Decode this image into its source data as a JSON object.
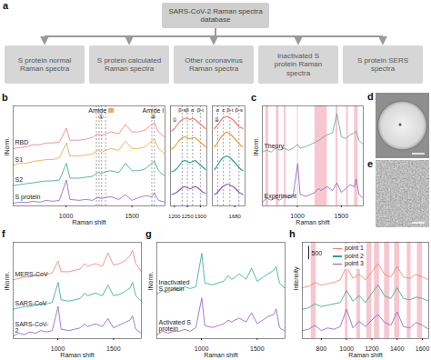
{
  "diagram": {
    "label": "a",
    "root": "SARS-CoV-2 Raman spectra database",
    "children": [
      "S protein normal Raman spectra",
      "S protein calculated Raman spectra",
      "Other coronavirus Raman spectra",
      "Inactivated S protein Raman spectra",
      "S protein SERS spectra"
    ]
  },
  "images": [
    {
      "label": "d"
    },
    {
      "label": "e"
    }
  ],
  "chart_data": [
    {
      "type": "line",
      "title": "b",
      "xlabel": "Raman shift",
      "ylabel": "INorm.",
      "x": [
        600,
        650,
        700,
        750,
        800,
        850,
        900,
        950,
        1003,
        1030,
        1100,
        1150,
        1200,
        1240,
        1270,
        1300,
        1340,
        1400,
        1450,
        1500,
        1550,
        1600,
        1650,
        1670,
        1700,
        1750
      ],
      "series": [
        {
          "name": "RBD",
          "color": "#ef7b72",
          "values": [
            3.1,
            3.15,
            3.2,
            3.3,
            3.3,
            3.4,
            3.4,
            3.45,
            4.2,
            3.55,
            3.55,
            3.6,
            3.7,
            3.9,
            3.8,
            3.9,
            4.0,
            3.9,
            4.4,
            4.0,
            4.0,
            4.1,
            4.4,
            4.5,
            4.0,
            3.7
          ]
        },
        {
          "name": "S1",
          "color": "#e9a23b",
          "values": [
            2.2,
            2.3,
            2.3,
            2.4,
            2.45,
            2.5,
            2.5,
            2.6,
            3.4,
            2.7,
            2.7,
            2.75,
            2.8,
            3.0,
            2.9,
            3.0,
            3.1,
            3.0,
            3.5,
            3.1,
            3.1,
            3.2,
            3.5,
            3.6,
            3.1,
            2.8
          ]
        },
        {
          "name": "S2",
          "color": "#2ca58d",
          "values": [
            1.1,
            1.15,
            1.2,
            1.25,
            1.3,
            1.35,
            1.35,
            1.4,
            2.3,
            1.5,
            1.5,
            1.55,
            1.6,
            1.8,
            1.75,
            1.85,
            1.9,
            1.8,
            2.3,
            1.9,
            1.9,
            2.0,
            2.3,
            2.4,
            1.9,
            1.6
          ]
        },
        {
          "name": "S protein",
          "color": "#8b5cc4",
          "values": [
            0.15,
            0.2,
            0.18,
            0.25,
            0.2,
            0.3,
            0.25,
            0.3,
            1.4,
            0.35,
            0.3,
            0.35,
            0.3,
            0.45,
            0.4,
            0.45,
            0.5,
            0.35,
            0.6,
            0.3,
            0.45,
            0.55,
            0.5,
            0.7,
            0.3,
            0.2
          ]
        }
      ],
      "xlim": [
        600,
        1750
      ],
      "xticks": [
        1000,
        1500
      ],
      "ylim": [
        0,
        5.4
      ],
      "dashed_lines": [
        1230,
        1250,
        1270,
        1300,
        1650,
        1670
      ],
      "annotations": [
        {
          "text": "Amide III",
          "x": 1265,
          "y": 5.15
        },
        {
          "text": "①",
          "x": 1265,
          "y": 4.8
        },
        {
          "text": "Amide I",
          "x": 1660,
          "y": 5.15
        },
        {
          "text": "②",
          "x": 1660,
          "y": 4.8
        }
      ]
    },
    {
      "type": "line",
      "title": "①",
      "x": [
        1190,
        1200,
        1210,
        1220,
        1230,
        1240,
        1250,
        1260,
        1270,
        1280,
        1290,
        1300,
        1310,
        1320
      ],
      "series": [
        {
          "name": "RBD",
          "color": "#ef7b72",
          "values": [
            3.3,
            3.4,
            3.55,
            3.7,
            3.8,
            3.85,
            3.85,
            3.8,
            3.85,
            3.8,
            3.7,
            3.6,
            3.5,
            3.4
          ]
        },
        {
          "name": "S1",
          "color": "#e9a23b",
          "values": [
            2.5,
            2.6,
            2.75,
            2.9,
            3.0,
            3.05,
            3.0,
            2.95,
            3.0,
            3.0,
            2.9,
            2.8,
            2.7,
            2.6
          ]
        },
        {
          "name": "S2",
          "color": "#2ca58d",
          "values": [
            1.5,
            1.55,
            1.65,
            1.8,
            1.95,
            2.0,
            1.95,
            1.9,
            1.95,
            2.0,
            1.9,
            1.8,
            1.7,
            1.6
          ]
        },
        {
          "name": "S protein",
          "color": "#8b5cc4",
          "values": [
            0.5,
            0.55,
            0.6,
            0.7,
            0.8,
            0.85,
            0.8,
            0.75,
            0.8,
            0.85,
            0.8,
            0.7,
            0.6,
            0.55
          ]
        }
      ],
      "xlim": [
        1185,
        1325
      ],
      "xticks": [
        1200,
        1250,
        1300
      ],
      "ylim": [
        0,
        4.4
      ],
      "dashed_lines": [
        1230,
        1250,
        1270,
        1300
      ],
      "annotations": [
        {
          "text": "β-s",
          "x": 1230,
          "y": 4.2
        },
        {
          "text": "β",
          "x": 1250,
          "y": 4.2
        },
        {
          "text": "α",
          "x": 1270,
          "y": 4.2
        },
        {
          "text": "β-t",
          "x": 1300,
          "y": 4.2
        }
      ]
    },
    {
      "type": "line",
      "title": "②",
      "x": [
        1630,
        1635,
        1640,
        1645,
        1650,
        1655,
        1660,
        1665,
        1670,
        1675,
        1680,
        1685,
        1690,
        1695,
        1700
      ],
      "series": [
        {
          "name": "RBD",
          "color": "#ef7b72",
          "values": [
            3.4,
            3.5,
            3.6,
            3.75,
            3.85,
            3.9,
            3.95,
            3.9,
            3.85,
            3.8,
            3.7,
            3.6,
            3.5,
            3.45,
            3.4
          ]
        },
        {
          "name": "S1",
          "color": "#e9a23b",
          "values": [
            2.6,
            2.7,
            2.85,
            3.0,
            3.1,
            3.2,
            3.25,
            3.2,
            3.15,
            3.05,
            2.95,
            2.85,
            2.75,
            2.65,
            2.6
          ]
        },
        {
          "name": "S2",
          "color": "#2ca58d",
          "values": [
            1.6,
            1.7,
            1.85,
            2.0,
            2.1,
            2.15,
            2.2,
            2.15,
            2.1,
            2.0,
            1.9,
            1.8,
            1.7,
            1.6,
            1.55
          ]
        },
        {
          "name": "S protein",
          "color": "#8b5cc4",
          "values": [
            0.5,
            0.55,
            0.65,
            0.75,
            0.85,
            0.9,
            0.95,
            0.95,
            0.9,
            0.85,
            0.8,
            0.7,
            0.6,
            0.55,
            0.5
          ]
        }
      ],
      "xlim": [
        1625,
        1705
      ],
      "xticks": [
        1680
      ],
      "ylim": [
        0,
        4.4
      ],
      "dashed_lines": [
        1638,
        1652,
        1668,
        1690
      ],
      "annotations": [
        {
          "text": "α",
          "x": 1638,
          "y": 4.2
        },
        {
          "text": "c",
          "x": 1652,
          "y": 4.2
        },
        {
          "text": "β-t",
          "x": 1668,
          "y": 4.2
        },
        {
          "text": "β-s",
          "x": 1690,
          "y": 4.2
        }
      ]
    },
    {
      "type": "line",
      "title": "c",
      "xlabel": "Raman shift",
      "ylabel": "INorm.",
      "x": [
        600,
        650,
        700,
        750,
        800,
        850,
        900,
        950,
        1003,
        1030,
        1100,
        1150,
        1200,
        1240,
        1270,
        1300,
        1340,
        1400,
        1450,
        1500,
        1550,
        1600,
        1650,
        1670,
        1700,
        1750
      ],
      "series": [
        {
          "name": "Theory",
          "color": "#5aa58a",
          "values": [
            1.4,
            1.45,
            1.4,
            1.5,
            1.45,
            1.5,
            1.45,
            1.5,
            1.6,
            1.5,
            1.55,
            1.6,
            1.65,
            1.7,
            1.75,
            1.8,
            1.85,
            1.9,
            2.4,
            1.8,
            1.75,
            1.85,
            1.9,
            1.95,
            1.7,
            1.6
          ]
        },
        {
          "name": "Experiment",
          "color": "#8b5cc4",
          "values": [
            0.1,
            0.2,
            0.15,
            0.2,
            0.15,
            0.25,
            0.2,
            0.25,
            1.1,
            0.3,
            0.25,
            0.3,
            0.35,
            0.45,
            0.4,
            0.45,
            0.5,
            0.4,
            0.6,
            0.35,
            0.45,
            0.55,
            0.5,
            0.7,
            0.3,
            0.2
          ]
        }
      ],
      "xlim": [
        600,
        1750
      ],
      "xticks": [
        1000,
        1500
      ],
      "ylim": [
        0,
        2.6
      ],
      "bands": [
        [
          640,
          670
        ],
        [
          760,
          790
        ],
        [
          850,
          870
        ],
        [
          1000,
          1010
        ],
        [
          1200,
          1340
        ],
        [
          1440,
          1460
        ],
        [
          1560,
          1580
        ],
        [
          1650,
          1690
        ]
      ]
    },
    {
      "type": "line",
      "title": "f",
      "xlabel": "Raman shift",
      "ylabel": "INorm.",
      "x": [
        600,
        650,
        700,
        750,
        800,
        850,
        900,
        950,
        1003,
        1030,
        1100,
        1150,
        1200,
        1240,
        1270,
        1300,
        1340,
        1400,
        1450,
        1500,
        1550,
        1600,
        1650,
        1670,
        1700,
        1750
      ],
      "series": [
        {
          "name": "MERS-CoV",
          "color": "#ef7b72",
          "values": [
            2.2,
            2.25,
            2.3,
            2.3,
            2.35,
            2.4,
            2.4,
            2.45,
            2.9,
            2.5,
            2.5,
            2.55,
            2.6,
            2.8,
            2.7,
            2.75,
            2.8,
            2.7,
            3.2,
            2.75,
            2.8,
            2.9,
            3.1,
            3.3,
            2.8,
            2.5
          ]
        },
        {
          "name": "SARS-CoV",
          "color": "#2ca58d",
          "values": [
            1.1,
            1.15,
            1.2,
            1.2,
            1.25,
            1.3,
            1.3,
            1.35,
            2.1,
            1.45,
            1.4,
            1.45,
            1.5,
            1.7,
            1.6,
            1.65,
            1.7,
            1.6,
            2.0,
            1.6,
            1.65,
            1.75,
            1.9,
            2.1,
            1.6,
            1.4
          ]
        },
        {
          "name": "SARS-CoV-2",
          "color": "#8b5cc4",
          "values": [
            0.1,
            0.2,
            0.15,
            0.25,
            0.2,
            0.3,
            0.25,
            0.3,
            1.2,
            0.35,
            0.3,
            0.35,
            0.4,
            0.55,
            0.45,
            0.5,
            0.55,
            0.45,
            0.75,
            0.4,
            0.5,
            0.6,
            0.7,
            0.85,
            0.35,
            0.2
          ]
        }
      ],
      "xlim": [
        600,
        1750
      ],
      "xticks": [
        1000,
        1500
      ],
      "ylim": [
        0,
        3.6
      ]
    },
    {
      "type": "line",
      "title": "g",
      "xlabel": "Raman shift",
      "ylabel": "INorm.",
      "x": [
        600,
        650,
        700,
        750,
        800,
        850,
        900,
        950,
        1003,
        1030,
        1100,
        1150,
        1200,
        1240,
        1270,
        1300,
        1340,
        1400,
        1450,
        1500,
        1550,
        1600,
        1650,
        1670,
        1700,
        1750
      ],
      "series": [
        {
          "name": "Inactivated S protein",
          "color": "#2ca58d",
          "values": [
            1.2,
            1.3,
            1.25,
            1.35,
            1.3,
            1.4,
            1.35,
            1.4,
            2.3,
            1.5,
            1.45,
            1.5,
            1.55,
            1.7,
            1.6,
            1.65,
            1.75,
            1.6,
            1.9,
            1.55,
            1.65,
            1.75,
            1.85,
            1.95,
            1.5,
            1.35
          ]
        },
        {
          "name": "Activated S protein",
          "color": "#8b5cc4",
          "values": [
            0.1,
            0.2,
            0.15,
            0.2,
            0.2,
            0.25,
            0.2,
            0.3,
            1.1,
            0.35,
            0.3,
            0.35,
            0.4,
            0.5,
            0.45,
            0.5,
            0.55,
            0.45,
            0.7,
            0.4,
            0.5,
            0.6,
            0.65,
            0.8,
            0.3,
            0.2
          ]
        }
      ],
      "xlim": [
        600,
        1750
      ],
      "xticks": [
        1000,
        1500
      ],
      "ylim": [
        0,
        2.6
      ]
    },
    {
      "type": "line",
      "title": "h",
      "xlabel": "Raman shift",
      "ylabel": "Intensity",
      "legend": "top-left",
      "x": [
        650,
        700,
        750,
        800,
        850,
        900,
        950,
        1000,
        1050,
        1100,
        1150,
        1200,
        1250,
        1300,
        1350,
        1400,
        1450,
        1500,
        1550,
        1600,
        1650
      ],
      "series": [
        {
          "name": "point 1",
          "color": "#ef7b72",
          "values": [
            1900,
            1950,
            2100,
            2000,
            2050,
            2100,
            2200,
            2700,
            2250,
            2400,
            2200,
            2500,
            2800,
            2400,
            2300,
            2700,
            2300,
            2250,
            2400,
            2300,
            2200
          ]
        },
        {
          "name": "point 2",
          "color": "#2ca58d",
          "values": [
            1100,
            1150,
            1300,
            1200,
            1250,
            1300,
            1350,
            1800,
            1400,
            1600,
            1350,
            1700,
            2000,
            1600,
            1500,
            1900,
            1500,
            1450,
            1550,
            1500,
            1400
          ]
        },
        {
          "name": "point 3",
          "color": "#8b5cc4",
          "values": [
            300,
            350,
            500,
            300,
            400,
            350,
            450,
            1100,
            400,
            650,
            450,
            700,
            900,
            600,
            500,
            1000,
            450,
            400,
            600,
            500,
            350
          ]
        }
      ],
      "xlim": [
        650,
        1650
      ],
      "xticks": [
        800,
        1000,
        1200,
        1400,
        1600
      ],
      "ylim": [
        0,
        3600
      ],
      "scale_bar": 500,
      "bands": [
        [
          720,
          760
        ],
        [
          990,
          1010
        ],
        [
          1080,
          1110
        ],
        [
          1160,
          1200
        ],
        [
          1220,
          1260
        ],
        [
          1300,
          1340
        ],
        [
          1380,
          1420
        ],
        [
          1480,
          1510
        ],
        [
          1560,
          1600
        ]
      ]
    }
  ]
}
